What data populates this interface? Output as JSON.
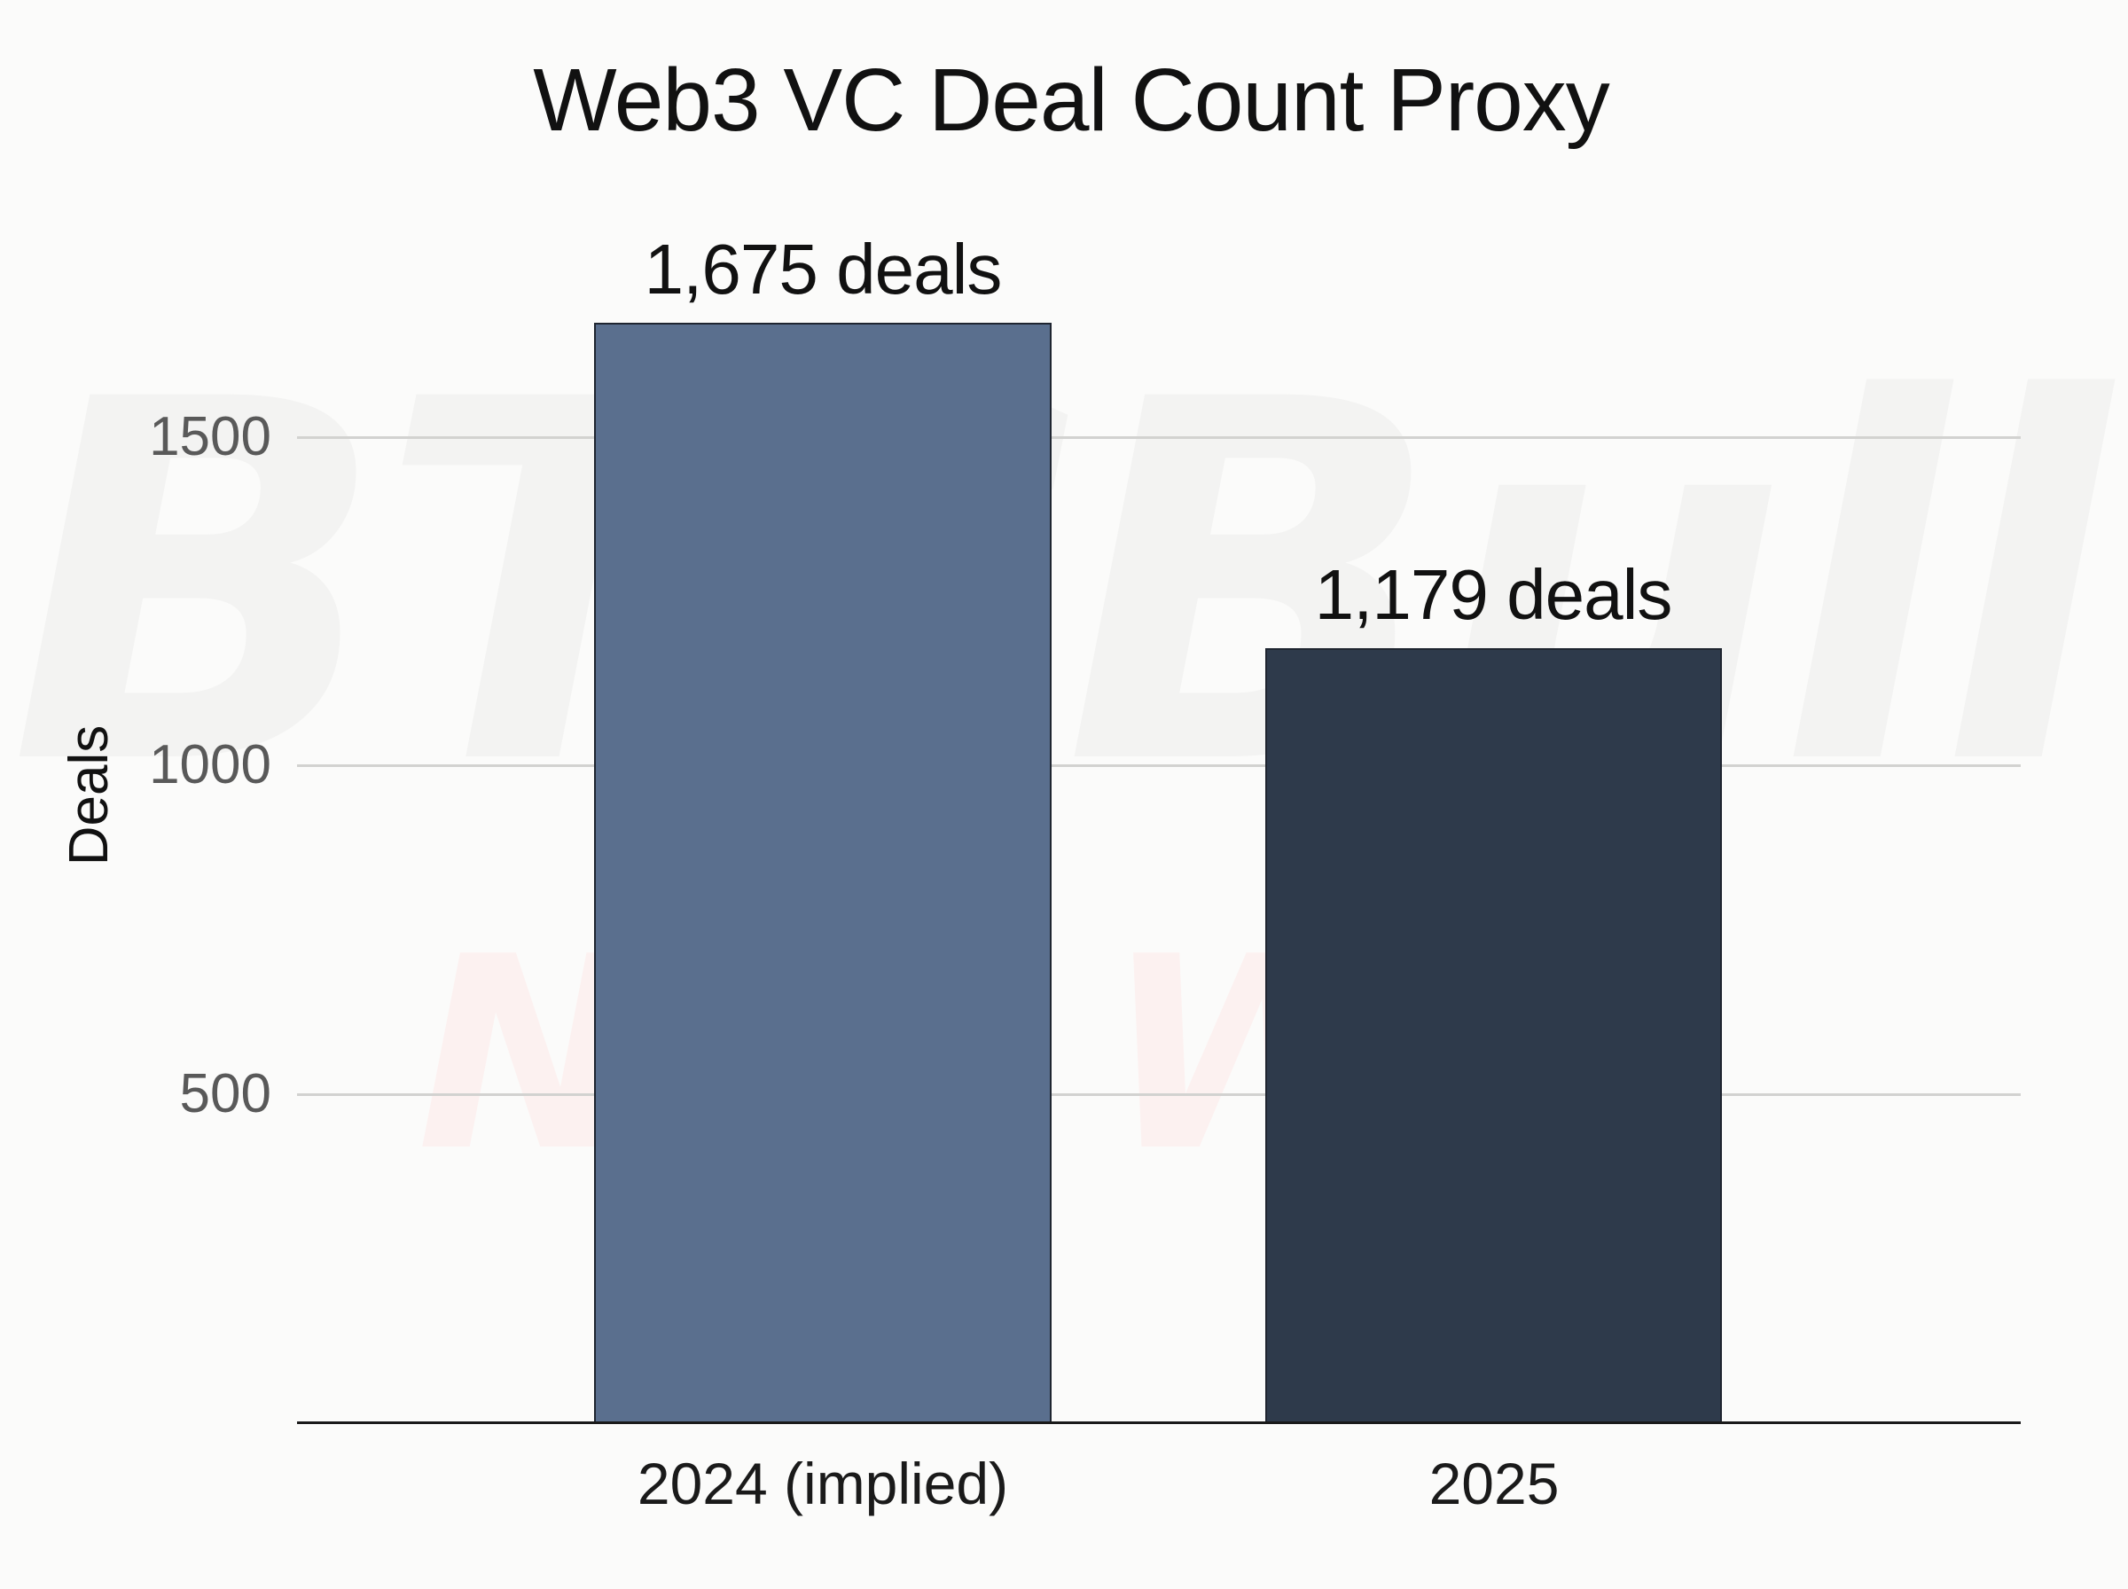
{
  "watermark": {
    "top": "BTCBull",
    "bottom": "NEWS"
  },
  "chart_data": {
    "type": "bar",
    "title": "Web3 VC Deal Count Proxy",
    "xlabel": "",
    "ylabel": "Deals",
    "categories": [
      "2024 (implied)",
      "2025"
    ],
    "values": [
      1675,
      1179
    ],
    "data_labels": [
      "1,675 deals",
      "1,179 deals"
    ],
    "colors": [
      "#5a6f8e",
      "#2e3a4b"
    ],
    "ylim": [
      0,
      1900
    ],
    "yticks": [
      500,
      1000,
      1500
    ],
    "ytick_labels": [
      "500",
      "1000",
      "1500"
    ],
    "grid": true,
    "legend": null
  }
}
